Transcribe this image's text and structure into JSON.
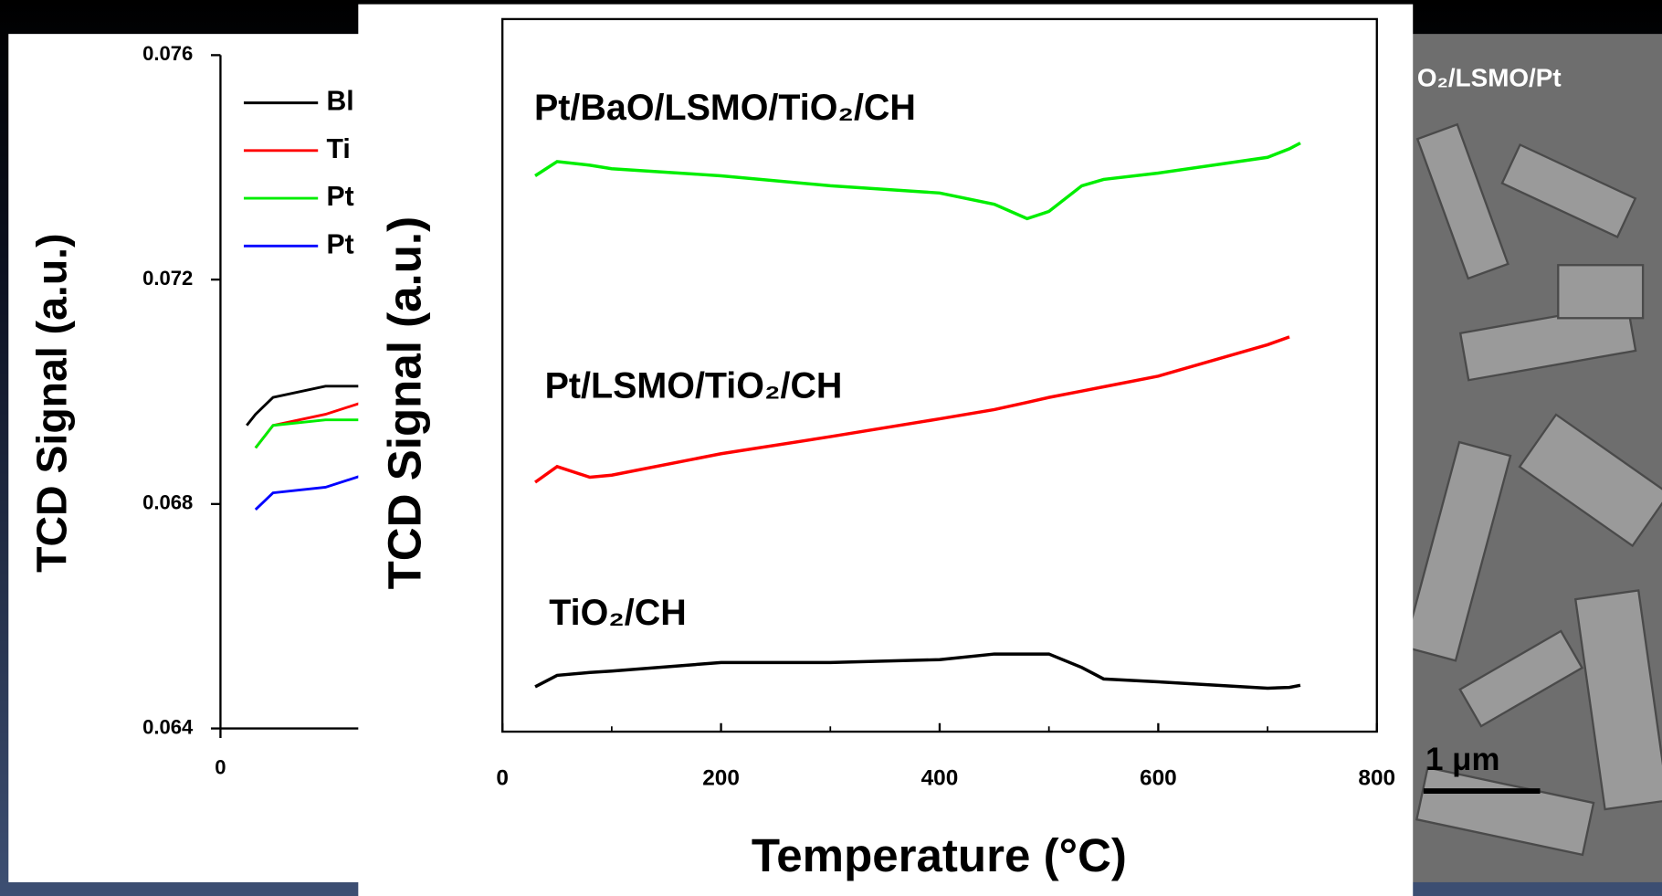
{
  "chart_data": [
    {
      "type": "line",
      "xlabel": "Temperature (°C)",
      "ylabel": "TCD Signal (a.u.)",
      "xlim": [
        0,
        800
      ],
      "xticks": [
        0,
        200,
        400,
        600,
        800
      ],
      "ylim": [
        0,
        1
      ],
      "x": [
        30,
        50,
        80,
        100,
        200,
        300,
        400,
        450,
        480,
        500,
        530,
        550,
        600,
        700,
        720,
        730
      ],
      "series": [
        {
          "name": "Pt/BaO/LSMO/TiO₂/CH",
          "color": "#00ee00",
          "values": [
            0.78,
            0.8,
            0.795,
            0.79,
            0.78,
            0.766,
            0.756,
            0.74,
            0.72,
            0.73,
            0.766,
            0.775,
            0.784,
            0.806,
            0.818,
            0.826
          ]
        },
        {
          "name": "Pt/LSMO/TiO₂/CH",
          "color": "#ff0000",
          "values": [
            0.35,
            0.372,
            0.357,
            0.36,
            0.39,
            0.414,
            0.439,
            0.452,
            0.462,
            0.469,
            0.478,
            0.484,
            0.499,
            0.543,
            0.554,
            null
          ]
        },
        {
          "name": "TiO₂/CH",
          "color": "#000000",
          "values": [
            0.063,
            0.079,
            0.083,
            0.085,
            0.097,
            0.097,
            0.101,
            0.109,
            0.109,
            0.109,
            0.09,
            0.074,
            0.07,
            0.061,
            0.062,
            0.065
          ]
        }
      ]
    },
    {
      "type": "line",
      "ylabel": "TCD Signal (a.u.)",
      "xlim": [
        0,
        800
      ],
      "xticks": [
        0
      ],
      "ylim": [
        0.064,
        0.076
      ],
      "yticks": [
        0.064,
        0.068,
        0.072,
        0.076
      ],
      "legend": "upper left",
      "x": [
        15,
        20,
        30,
        60,
        80
      ],
      "series": [
        {
          "name": "Bl",
          "color": "#000000",
          "values": [
            0.0694,
            0.0696,
            0.0699,
            0.0701,
            0.0701
          ]
        },
        {
          "name": "Ti",
          "color": "#ff0000",
          "values": [
            null,
            0.069,
            0.0694,
            0.0696,
            0.0698
          ]
        },
        {
          "name": "Pt",
          "color": "#00ee00",
          "values": [
            null,
            0.069,
            0.0694,
            0.0695,
            0.0695
          ]
        },
        {
          "name": "Pt",
          "color": "#0000ff",
          "values": [
            null,
            0.0679,
            0.0682,
            0.0683,
            0.0685
          ]
        }
      ]
    }
  ],
  "sem_image": {
    "label": "O₂/LSMO/Pt",
    "scale_bar": "1 μm"
  }
}
